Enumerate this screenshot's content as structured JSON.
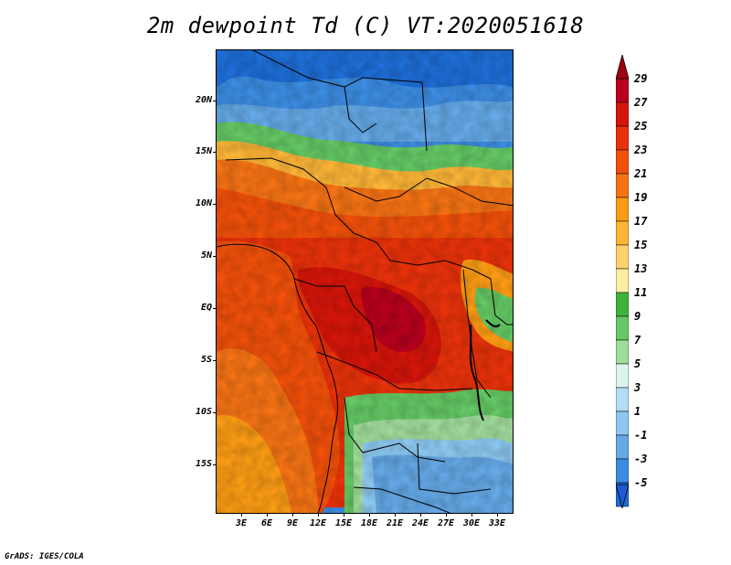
{
  "title": "2m dewpoint Td (C) VT:2020051618",
  "credit": "GrADS: IGES/COLA",
  "lat_labels": [
    "20N",
    "15N",
    "10N",
    "5N",
    "EQ",
    "5S",
    "10S",
    "15S"
  ],
  "lon_labels": [
    "3E",
    "6E",
    "9E",
    "12E",
    "15E",
    "18E",
    "21E",
    "24E",
    "27E",
    "30E",
    "33E"
  ],
  "colorbar": {
    "labels": [
      "29",
      "27",
      "25",
      "23",
      "21",
      "19",
      "17",
      "15",
      "13",
      "11",
      "9",
      "7",
      "5",
      "3",
      "1",
      "-1",
      "-3",
      "-5"
    ],
    "colors": [
      "#b8001e",
      "#d5150a",
      "#e8320a",
      "#f0500a",
      "#f57314",
      "#fa9b14",
      "#fcb537",
      "#fdd16e",
      "#fceea0",
      "#3cb43c",
      "#64c864",
      "#a0dc9b",
      "#dcf5f0",
      "#b4dcf5",
      "#8cc8f0",
      "#64a8e6",
      "#3c8ce1",
      "#1e6ed7"
    ],
    "top_color": "#a0000f",
    "bottom_color": "#1e5ad2"
  }
}
